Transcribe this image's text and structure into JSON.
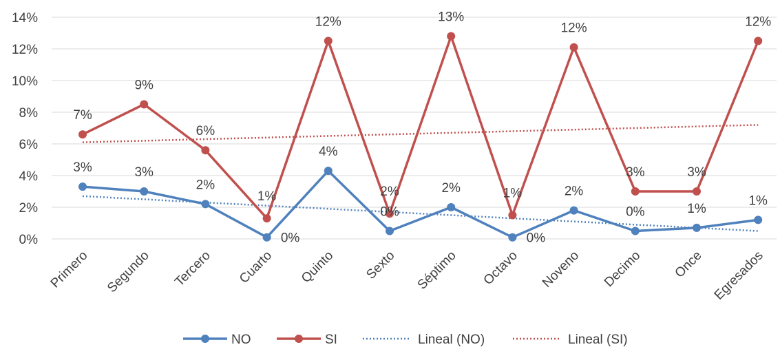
{
  "chart_data": {
    "type": "line",
    "title": "",
    "xlabel": "",
    "ylabel": "",
    "categories": [
      "Primero",
      "Segundo",
      "Tercero",
      "Cuarto",
      "Quinto",
      "Sexto",
      "Séptimo",
      "Octavo",
      "Noveno",
      "Decimo",
      "Once",
      "Egresados"
    ],
    "ylim": [
      0,
      14
    ],
    "y_ticks": [
      "0%",
      "2%",
      "4%",
      "6%",
      "8%",
      "10%",
      "12%",
      "14%"
    ],
    "y_tick_values": [
      0,
      2,
      4,
      6,
      8,
      10,
      12,
      14
    ],
    "grid": true,
    "legend_position": "bottom",
    "series": [
      {
        "name": "NO",
        "color": "#4f81bd",
        "values": [
          3.3,
          3.0,
          2.2,
          0.1,
          4.3,
          0.5,
          2.0,
          0.1,
          1.8,
          0.5,
          0.7,
          1.2
        ],
        "labels": [
          "3%",
          "3%",
          "2%",
          "0%",
          "4%",
          "0%",
          "2%",
          "0%",
          "2%",
          "0%",
          "1%",
          "1%"
        ]
      },
      {
        "name": "SI",
        "color": "#c0504d",
        "values": [
          6.6,
          8.5,
          5.6,
          1.3,
          12.5,
          1.6,
          12.8,
          1.5,
          12.1,
          3.0,
          3.0,
          12.5
        ],
        "labels": [
          "7%",
          "9%",
          "6%",
          "1%",
          "12%",
          "2%",
          "13%",
          "1%",
          "12%",
          "3%",
          "3%",
          "12%"
        ]
      }
    ],
    "trendlines": [
      {
        "name": "Lineal (NO)",
        "color": "#4f81bd",
        "start": 2.7,
        "end": 0.5
      },
      {
        "name": "Lineal (SI)",
        "color": "#c0504d",
        "start": 6.1,
        "end": 7.2
      }
    ],
    "legend": [
      "NO",
      "SI",
      "Lineal (NO)",
      "Lineal (SI)"
    ]
  }
}
